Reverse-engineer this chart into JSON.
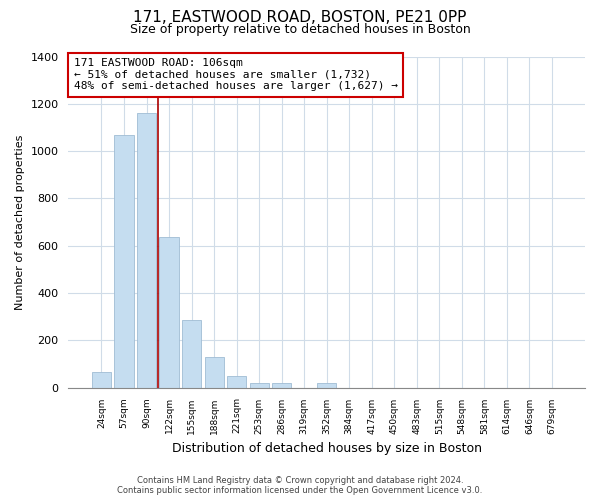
{
  "title1": "171, EASTWOOD ROAD, BOSTON, PE21 0PP",
  "title2": "Size of property relative to detached houses in Boston",
  "xlabel": "Distribution of detached houses by size in Boston",
  "ylabel": "Number of detached properties",
  "bar_labels": [
    "24sqm",
    "57sqm",
    "90sqm",
    "122sqm",
    "155sqm",
    "188sqm",
    "221sqm",
    "253sqm",
    "286sqm",
    "319sqm",
    "352sqm",
    "384sqm",
    "417sqm",
    "450sqm",
    "483sqm",
    "515sqm",
    "548sqm",
    "581sqm",
    "614sqm",
    "646sqm",
    "679sqm"
  ],
  "bar_values": [
    65,
    1070,
    1160,
    635,
    285,
    130,
    47,
    20,
    20,
    0,
    20,
    0,
    0,
    0,
    0,
    0,
    0,
    0,
    0,
    0,
    0
  ],
  "bar_color": "#c5ddf0",
  "bar_edge_color": "#a0bcd4",
  "highlight_line_color": "#aa0000",
  "ylim": [
    0,
    1400
  ],
  "yticks": [
    0,
    200,
    400,
    600,
    800,
    1000,
    1200,
    1400
  ],
  "annotation_line1": "171 EASTWOOD ROAD: 106sqm",
  "annotation_line2": "← 51% of detached houses are smaller (1,732)",
  "annotation_line3": "48% of semi-detached houses are larger (1,627) →",
  "annotation_box_color": "#ffffff",
  "annotation_box_edge": "#cc0000",
  "footer1": "Contains HM Land Registry data © Crown copyright and database right 2024.",
  "footer2": "Contains public sector information licensed under the Open Government Licence v3.0.",
  "background_color": "#ffffff",
  "plot_bg_color": "#ffffff",
  "grid_color": "#d0dce8"
}
